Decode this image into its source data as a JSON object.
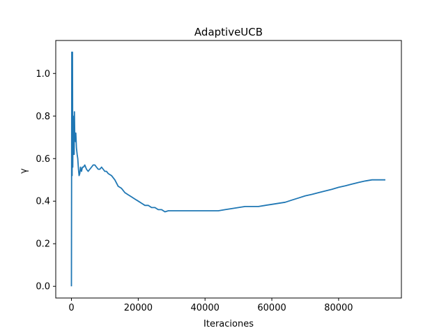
{
  "chart_data": {
    "type": "line",
    "title": "AdaptiveUCB",
    "xlabel": "Iteraciones",
    "ylabel": "γ",
    "xlim": [
      -4700,
      98800
    ],
    "ylim": [
      -0.055,
      1.155
    ],
    "xticks": [
      0,
      20000,
      40000,
      60000,
      80000
    ],
    "xtick_labels": [
      "0",
      "20000",
      "40000",
      "60000",
      "80000"
    ],
    "yticks": [
      0.0,
      0.2,
      0.4,
      0.6,
      0.8,
      1.0
    ],
    "ytick_labels": [
      "0.0",
      "0.2",
      "0.4",
      "0.6",
      "0.8",
      "1.0"
    ],
    "grid": false,
    "line_color": "#1f77b4",
    "series": [
      {
        "x": [
          0,
          100,
          200,
          300,
          400,
          500,
          600,
          700,
          800,
          900,
          1000,
          1100,
          1200,
          1300,
          1500,
          1700,
          1900,
          2100,
          2300,
          2500,
          2700,
          3000,
          3300,
          3600,
          4000,
          4500,
          5000,
          5500,
          6000,
          6500,
          7000,
          7500,
          8000,
          8500,
          9000,
          9500,
          10000,
          10500,
          11000,
          12000,
          13000,
          14000,
          15000,
          16000,
          17000,
          18000,
          19000,
          20000,
          21000,
          22000,
          23000,
          24000,
          25000,
          26000,
          27000,
          28000,
          29000,
          30000,
          32000,
          34000,
          36000,
          38000,
          40000,
          42000,
          44000,
          46000,
          48000,
          50000,
          52000,
          54000,
          56000,
          58000,
          60000,
          62000,
          64000,
          66000,
          68000,
          70000,
          72000,
          74000,
          76000,
          78000,
          80000,
          82000,
          84000,
          86000,
          88000,
          90000,
          92000,
          94000
        ],
        "y": [
          0.0,
          1.1,
          0.52,
          1.1,
          0.56,
          0.8,
          0.62,
          0.78,
          0.62,
          0.82,
          0.7,
          0.72,
          0.68,
          0.72,
          0.65,
          0.62,
          0.6,
          0.55,
          0.52,
          0.53,
          0.56,
          0.54,
          0.56,
          0.56,
          0.57,
          0.55,
          0.54,
          0.55,
          0.56,
          0.57,
          0.57,
          0.56,
          0.55,
          0.55,
          0.56,
          0.55,
          0.54,
          0.54,
          0.53,
          0.52,
          0.5,
          0.47,
          0.46,
          0.44,
          0.43,
          0.42,
          0.41,
          0.4,
          0.39,
          0.38,
          0.38,
          0.37,
          0.37,
          0.36,
          0.36,
          0.35,
          0.355,
          0.355,
          0.355,
          0.355,
          0.355,
          0.355,
          0.355,
          0.355,
          0.355,
          0.36,
          0.365,
          0.37,
          0.375,
          0.375,
          0.375,
          0.38,
          0.385,
          0.39,
          0.395,
          0.405,
          0.415,
          0.425,
          0.432,
          0.44,
          0.448,
          0.456,
          0.465,
          0.472,
          0.48,
          0.488,
          0.495,
          0.5,
          0.5,
          0.5
        ]
      }
    ]
  }
}
